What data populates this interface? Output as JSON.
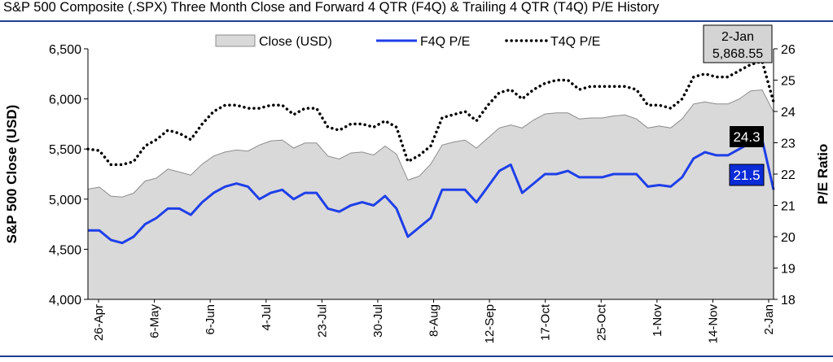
{
  "title": "S&P 500 Composite (.SPX) Three Month Close and Forward 4 QTR (F4Q) & Trailing 4 QTR (T4Q) P/E History",
  "chart_data": {
    "type": "area",
    "ylabel": "S&P 500 Close (USD)",
    "y2label": "P/E Ratio",
    "ylim": [
      4000,
      6500
    ],
    "y_ticks": [
      "4,000",
      "4,500",
      "5,000",
      "5,500",
      "6,000",
      "6,500"
    ],
    "y2lim": [
      18,
      26
    ],
    "y2_ticks": [
      "18",
      "19",
      "20",
      "21",
      "22",
      "23",
      "24",
      "25",
      "26"
    ],
    "x_tick_labels": [
      "26-Apr",
      "6-May",
      "6-Jun",
      "4-Jul",
      "23-Jul",
      "30-Jul",
      "8-Aug",
      "12-Sep",
      "17-Oct",
      "25-Oct",
      "1-Nov",
      "14-Nov",
      "2-Jan"
    ],
    "legend": [
      "Close (USD)",
      "F4Q P/E",
      "T4Q P/E"
    ],
    "legend_position": "top",
    "colors": {
      "close": "#d9d9d9",
      "close_outline": "#8c8c8c",
      "f4q": "#1f3fe8",
      "t4q": "#000000",
      "callout_dark": "#000000",
      "callout_blue": "#0a2bd6",
      "callout_gray": "#d4d4d4"
    },
    "series": [
      {
        "name": "Close (USD)",
        "axis": "left",
        "values": [
          5100,
          5120,
          5030,
          5020,
          5060,
          5180,
          5210,
          5300,
          5270,
          5240,
          5350,
          5430,
          5470,
          5490,
          5480,
          5540,
          5580,
          5590,
          5510,
          5560,
          5560,
          5430,
          5400,
          5460,
          5470,
          5440,
          5530,
          5450,
          5190,
          5230,
          5350,
          5540,
          5570,
          5590,
          5510,
          5610,
          5710,
          5740,
          5710,
          5790,
          5850,
          5860,
          5860,
          5800,
          5810,
          5810,
          5830,
          5840,
          5800,
          5710,
          5730,
          5710,
          5800,
          5950,
          5970,
          5950,
          5950,
          6000,
          6080,
          6090,
          5869
        ]
      },
      {
        "name": "F4Q P/E",
        "axis": "right",
        "values": [
          20.2,
          20.2,
          19.9,
          19.8,
          20.0,
          20.4,
          20.6,
          20.9,
          20.9,
          20.7,
          21.1,
          21.4,
          21.6,
          21.7,
          21.6,
          21.2,
          21.4,
          21.5,
          21.2,
          21.4,
          21.4,
          20.9,
          20.8,
          21.0,
          21.1,
          21.0,
          21.3,
          20.9,
          20.0,
          20.3,
          20.6,
          21.5,
          21.5,
          21.5,
          21.1,
          21.6,
          22.1,
          22.3,
          21.4,
          21.7,
          22.0,
          22.0,
          22.1,
          21.9,
          21.9,
          21.9,
          22.0,
          22.0,
          22.0,
          21.6,
          21.65,
          21.6,
          21.9,
          22.5,
          22.7,
          22.6,
          22.6,
          22.8,
          23.0,
          23.1,
          21.5
        ]
      },
      {
        "name": "T4Q P/E",
        "axis": "right",
        "values": [
          22.8,
          22.75,
          22.3,
          22.3,
          22.4,
          22.9,
          23.1,
          23.4,
          23.3,
          23.1,
          23.6,
          24.0,
          24.2,
          24.2,
          24.1,
          24.1,
          24.2,
          24.2,
          23.9,
          24.1,
          24.1,
          23.5,
          23.4,
          23.6,
          23.6,
          23.5,
          23.7,
          23.5,
          22.4,
          22.6,
          22.9,
          23.8,
          23.9,
          24.0,
          23.7,
          24.2,
          24.6,
          24.7,
          24.4,
          24.7,
          24.9,
          25.0,
          25.0,
          24.7,
          24.8,
          24.8,
          24.8,
          24.8,
          24.7,
          24.2,
          24.2,
          24.1,
          24.4,
          25.1,
          25.2,
          25.1,
          25.1,
          25.3,
          25.5,
          25.6,
          24.3
        ]
      }
    ],
    "callouts": {
      "close_date": "2-Jan",
      "close_value": "5,868.55",
      "t4q_value": "24.3",
      "f4q_value": "21.5"
    }
  }
}
